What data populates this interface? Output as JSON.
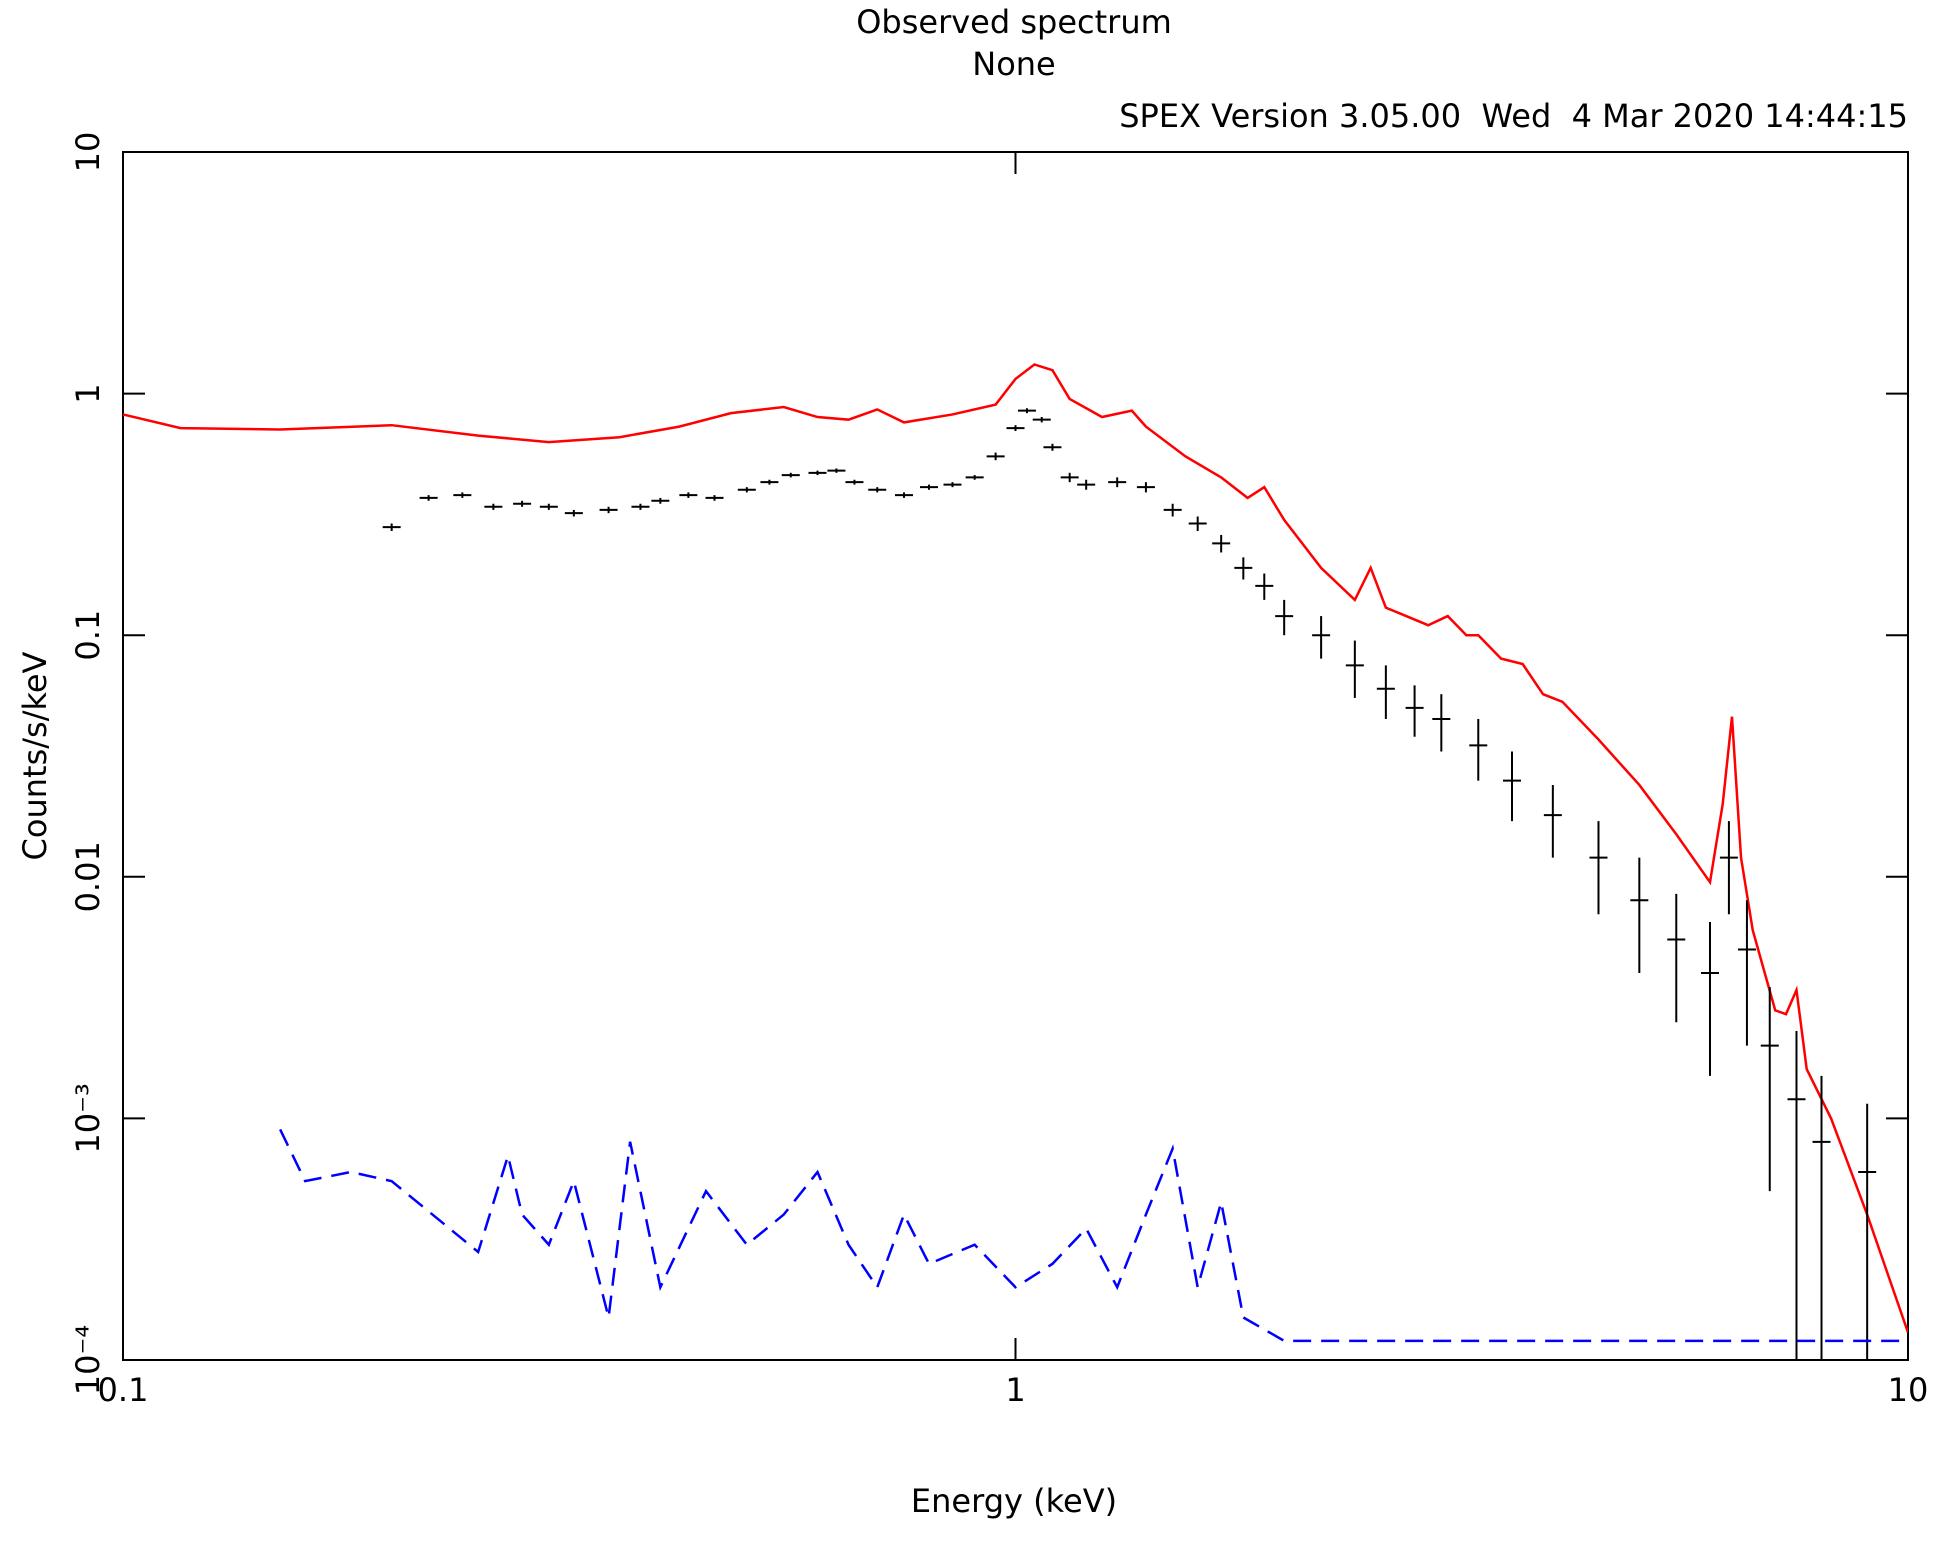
{
  "chart_data": {
    "type": "line",
    "title": "Observed spectrum",
    "subtitle": "None",
    "annotation": "SPEX Version 3.05.00  Wed  4 Mar 2020 14:44:15",
    "xlabel": "Energy (keV)",
    "ylabel": "Counts/s/keV",
    "xscale": "log",
    "yscale": "log",
    "xlim": [
      0.1,
      10
    ],
    "ylim": [
      0.0001,
      10
    ],
    "xticks": [
      0.1,
      1,
      10
    ],
    "yticks": [
      {
        "value": 0.0001,
        "label": "10⁻⁴"
      },
      {
        "value": 0.001,
        "label": "10⁻³"
      },
      0.01,
      0.1,
      1,
      10
    ],
    "series": [
      {
        "color": "#ff0000",
        "style": "line",
        "x": [
          0.1,
          0.116,
          0.15,
          0.2,
          0.25,
          0.3,
          0.36,
          0.42,
          0.48,
          0.55,
          0.6,
          0.65,
          0.7,
          0.75,
          0.85,
          0.95,
          1.0,
          1.05,
          1.1,
          1.15,
          1.25,
          1.35,
          1.4,
          1.55,
          1.7,
          1.82,
          1.9,
          2.0,
          2.2,
          2.4,
          2.5,
          2.6,
          2.9,
          3.05,
          3.2,
          3.3,
          3.5,
          3.7,
          3.9,
          4.1,
          4.5,
          5.0,
          5.5,
          6.0,
          6.2,
          6.35,
          6.5,
          6.7,
          7.1,
          7.3,
          7.5,
          7.7,
          8.2,
          9.0,
          10
        ],
        "values": [
          0.82,
          0.72,
          0.71,
          0.74,
          0.67,
          0.63,
          0.66,
          0.73,
          0.83,
          0.88,
          0.8,
          0.78,
          0.86,
          0.76,
          0.82,
          0.9,
          1.15,
          1.32,
          1.25,
          0.95,
          0.8,
          0.85,
          0.73,
          0.55,
          0.45,
          0.37,
          0.41,
          0.3,
          0.19,
          0.14,
          0.19,
          0.13,
          0.11,
          0.12,
          0.1,
          0.1,
          0.08,
          0.076,
          0.057,
          0.053,
          0.037,
          0.024,
          0.015,
          0.0095,
          0.02,
          0.046,
          0.012,
          0.006,
          0.0028,
          0.0027,
          0.0034,
          0.0016,
          0.001,
          0.0004,
          0.00013
        ]
      },
      {
        "color": "#000000",
        "style": "errorbar",
        "x": [
          0.2,
          0.22,
          0.24,
          0.26,
          0.28,
          0.3,
          0.32,
          0.35,
          0.38,
          0.4,
          0.43,
          0.46,
          0.5,
          0.53,
          0.56,
          0.6,
          0.63,
          0.66,
          0.7,
          0.75,
          0.8,
          0.85,
          0.9,
          0.95,
          1.0,
          1.03,
          1.07,
          1.1,
          1.15,
          1.2,
          1.3,
          1.4,
          1.5,
          1.6,
          1.7,
          1.8,
          1.9,
          2.0,
          2.2,
          2.4,
          2.6,
          2.8,
          3.0,
          3.3,
          3.6,
          4.0,
          4.5,
          5.0,
          5.5,
          6.0,
          6.3,
          6.6,
          7.0,
          7.5,
          8.0,
          9.0
        ],
        "values": [
          0.28,
          0.37,
          0.38,
          0.34,
          0.35,
          0.34,
          0.32,
          0.33,
          0.34,
          0.36,
          0.38,
          0.37,
          0.4,
          0.43,
          0.46,
          0.47,
          0.48,
          0.43,
          0.4,
          0.38,
          0.41,
          0.42,
          0.45,
          0.55,
          0.72,
          0.85,
          0.78,
          0.6,
          0.45,
          0.42,
          0.43,
          0.41,
          0.33,
          0.29,
          0.24,
          0.19,
          0.16,
          0.12,
          0.1,
          0.075,
          0.06,
          0.05,
          0.045,
          0.035,
          0.025,
          0.018,
          0.012,
          0.008,
          0.0055,
          0.004,
          0.012,
          0.005,
          0.002,
          0.0012,
          0.0008,
          0.0006
        ],
        "errors": [
          0.01,
          0.01,
          0.01,
          0.01,
          0.01,
          0.01,
          0.01,
          0.01,
          0.01,
          0.01,
          0.01,
          0.01,
          0.01,
          0.01,
          0.01,
          0.01,
          0.01,
          0.01,
          0.01,
          0.01,
          0.01,
          0.01,
          0.01,
          0.02,
          0.02,
          0.02,
          0.02,
          0.02,
          0.02,
          0.02,
          0.02,
          0.02,
          0.02,
          0.02,
          0.02,
          0.02,
          0.02,
          0.02,
          0.02,
          0.02,
          0.015,
          0.012,
          0.012,
          0.01,
          0.008,
          0.006,
          0.005,
          0.004,
          0.003,
          0.0025,
          0.005,
          0.003,
          0.0015,
          0.0011,
          0.0007,
          0.00055
        ]
      },
      {
        "color": "#0000ff",
        "style": "dashed",
        "x": [
          0.15,
          0.16,
          0.18,
          0.2,
          0.25,
          0.27,
          0.28,
          0.3,
          0.32,
          0.35,
          0.37,
          0.4,
          0.45,
          0.5,
          0.55,
          0.6,
          0.65,
          0.7,
          0.75,
          0.8,
          0.9,
          1.0,
          1.1,
          1.2,
          1.3,
          1.4,
          1.5,
          1.6,
          1.7,
          1.8,
          2.0,
          3.0,
          5.0,
          10
        ],
        "values": [
          0.0009,
          0.00055,
          0.0006,
          0.00055,
          0.00028,
          0.0007,
          0.0004,
          0.0003,
          0.00055,
          0.00015,
          0.0008,
          0.0002,
          0.0005,
          0.0003,
          0.0004,
          0.0006,
          0.0003,
          0.0002,
          0.0004,
          0.00025,
          0.0003,
          0.0002,
          0.00025,
          0.00035,
          0.0002,
          0.0004,
          0.00075,
          0.0002,
          0.00045,
          0.00015,
          0.00012,
          0.00012,
          0.00012,
          0.00012
        ]
      }
    ]
  }
}
